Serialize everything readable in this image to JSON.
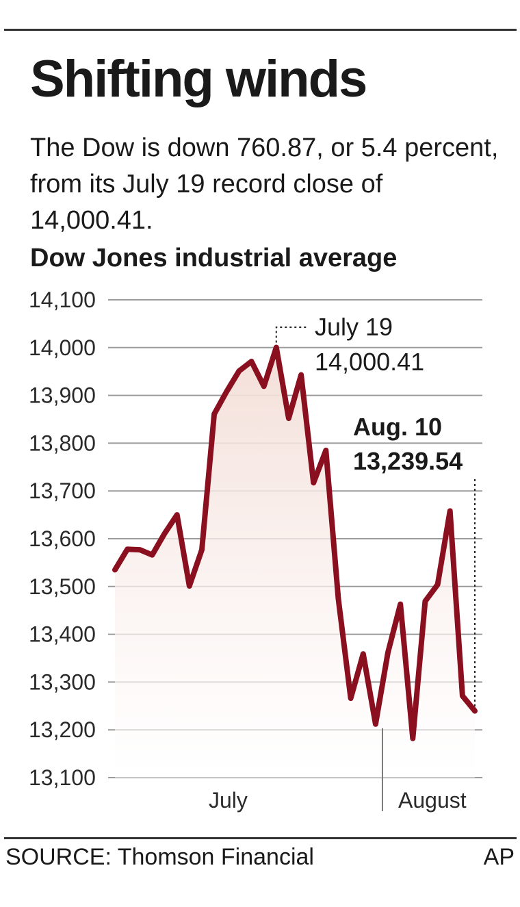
{
  "title": "Shifting winds",
  "subtitle": "The Dow is down 760.87, or 5.4 percent, from its July 19 record close of 14,000.41.",
  "source": "SOURCE: Thomson Financial",
  "credit": "AP",
  "colors": {
    "line": "#8a1020",
    "fill_top": "#f3ddd6",
    "grid": "#9a9a9a",
    "text": "#1a1a1a"
  },
  "chart_data": {
    "type": "line",
    "title": "Dow Jones industrial average",
    "xlabel": "",
    "ylabel": "",
    "ylim": [
      13100,
      14100
    ],
    "yticks": [
      14100,
      14000,
      13900,
      13800,
      13700,
      13600,
      13500,
      13400,
      13300,
      13200,
      13100
    ],
    "ytick_labels": [
      "14,100",
      "14,000",
      "13,900",
      "13,800",
      "13,700",
      "13,600",
      "13,500",
      "13,400",
      "13,300",
      "13,200",
      "13,100"
    ],
    "x_labels": [
      "July",
      "August"
    ],
    "grid": true,
    "fill_area": true,
    "series": [
      {
        "values": [
          13535,
          13578,
          13577,
          13566,
          13611,
          13650,
          13501,
          13577,
          13861,
          13908,
          13951,
          13971,
          13919,
          14000.41,
          13852,
          13943,
          13717,
          13785,
          13474,
          13266,
          13359,
          13212,
          13362,
          13463,
          13182,
          13469,
          13504,
          13658,
          13271,
          13239.54
        ]
      }
    ],
    "annotations": [
      {
        "label": "July 19",
        "value": "14,000.41",
        "index": 13,
        "bold": false
      },
      {
        "label": "Aug. 10",
        "value": "13,239.54",
        "index": 29,
        "bold": true
      }
    ]
  }
}
